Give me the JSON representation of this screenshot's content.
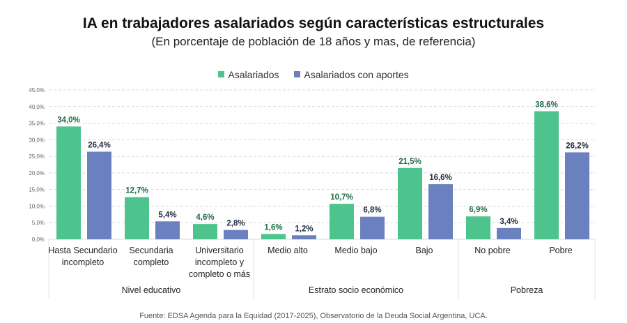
{
  "chart_data": {
    "type": "bar",
    "title": "IA en trabajadores asalariados según características estructurales",
    "subtitle": "(En porcentaje de población de 18 años y mas, de referencia)",
    "categories": [
      "Hasta Secundario incompleto",
      "Secundaria completo",
      "Universitario incompleto y completo o más",
      "Medio alto",
      "Medio bajo",
      "Bajo",
      "No pobre",
      "Pobre"
    ],
    "category_lines": [
      [
        "Hasta Secundario",
        "incompleto"
      ],
      [
        "Secundaria",
        "completo"
      ],
      [
        "Universitario",
        "incompleto y",
        "completo o más"
      ],
      [
        "Medio alto"
      ],
      [
        "Medio bajo"
      ],
      [
        "Bajo"
      ],
      [
        "No pobre"
      ],
      [
        "Pobre"
      ]
    ],
    "groups": [
      {
        "label": "Nivel educativo",
        "count": 3
      },
      {
        "label": "Estrato socio económico",
        "count": 3
      },
      {
        "label": "Pobreza",
        "count": 2
      }
    ],
    "series": [
      {
        "name": "Asalariados",
        "color": "#4DC48E",
        "label_color": "#1E6B45",
        "values": [
          34.0,
          12.7,
          4.6,
          1.6,
          10.7,
          21.5,
          6.9,
          38.6
        ],
        "labels": [
          "34,0%",
          "12,7%",
          "4,6%",
          "1,6%",
          "10,7%",
          "21,5%",
          "6,9%",
          "38,6%"
        ]
      },
      {
        "name": "Asalariados con aportes",
        "color": "#6B80BF",
        "label_color": "#1F2B44",
        "values": [
          26.4,
          5.4,
          2.8,
          1.2,
          6.8,
          16.6,
          3.4,
          26.2
        ],
        "labels": [
          "26,4%",
          "5,4%",
          "2,8%",
          "1,2%",
          "6,8%",
          "16,6%",
          "3,4%",
          "26,2%"
        ]
      }
    ],
    "ylim": [
      0,
      45
    ],
    "yticks": [
      "0,0%",
      "5,0%",
      "10,0%",
      "15,0%",
      "20,0%",
      "25,0%",
      "30,0%",
      "35,0%",
      "40,0%",
      "45,0%"
    ],
    "grid": true,
    "legend_position": "top"
  },
  "source": "Fuente: EDSA Agenda para la Equidad (2017-2025), Observatorio de la Deuda Social Argentina, UCA."
}
